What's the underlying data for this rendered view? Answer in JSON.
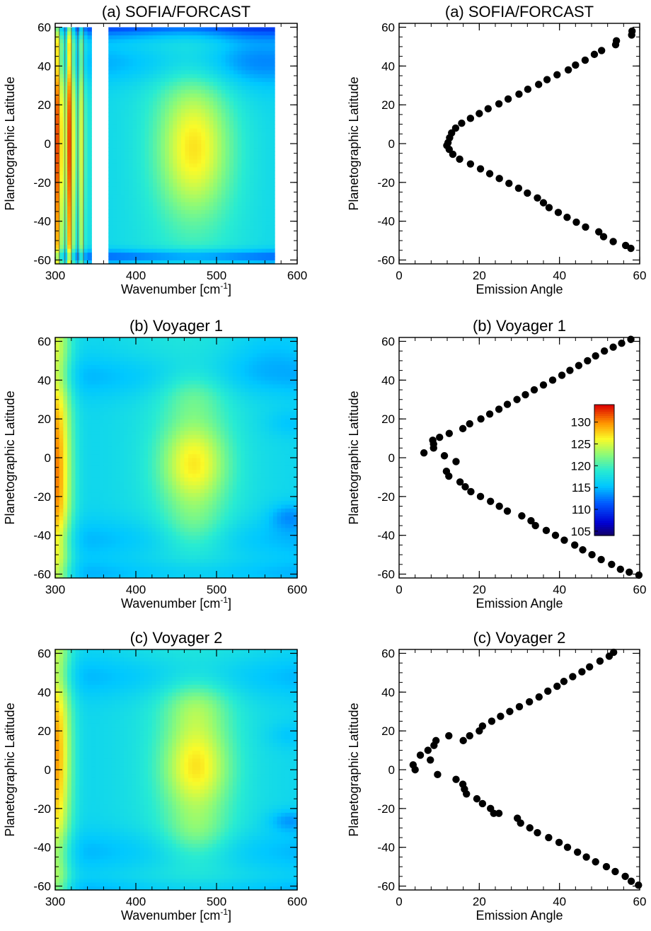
{
  "colorbar": {
    "range": [
      104,
      134
    ],
    "ticks": [
      105,
      110,
      115,
      120,
      125,
      130
    ]
  },
  "chart_data": [
    {
      "id": "spec_sofia",
      "type": "heatmap",
      "title": "(a) SOFIA/FORCAST",
      "xlabel": "Wavenumber [cm",
      "xlabel_sup": "-1",
      "xlabel_tail": "]",
      "ylabel": "Planetographic Latitude",
      "xlim": [
        300,
        600
      ],
      "ylim": [
        -62,
        62
      ],
      "xticks": [
        300,
        400,
        500,
        600
      ],
      "yticks": [
        -60,
        -40,
        -20,
        0,
        20,
        40,
        60
      ],
      "data_coverage_x": [
        [
          300,
          345
        ],
        [
          366,
          572
        ]
      ],
      "data_coverage_y": [
        -62,
        60
      ],
      "description_model": "sofia"
    },
    {
      "id": "ang_sofia",
      "type": "scatter",
      "title": "(a) SOFIA/FORCAST",
      "xlabel": "Emission Angle",
      "ylabel": "Planetographic Latitude",
      "xlim": [
        0,
        60
      ],
      "ylim": [
        -62,
        62
      ],
      "xticks": [
        0,
        20,
        40,
        60
      ],
      "yticks": [
        -60,
        -40,
        -20,
        0,
        20,
        40,
        60
      ],
      "points": [
        [
          58.1,
          58
        ],
        [
          58.0,
          56
        ],
        [
          54.2,
          53
        ],
        [
          54.0,
          51
        ],
        [
          50.5,
          48
        ],
        [
          48.7,
          46
        ],
        [
          46.4,
          43
        ],
        [
          44.0,
          40.5
        ],
        [
          42.2,
          38
        ],
        [
          39.4,
          35.5
        ],
        [
          36.9,
          33
        ],
        [
          34.8,
          30.5
        ],
        [
          32.1,
          28
        ],
        [
          29.9,
          25.5
        ],
        [
          27.2,
          23
        ],
        [
          24.9,
          20.5
        ],
        [
          22.2,
          18
        ],
        [
          20.0,
          15.5
        ],
        [
          17.8,
          13
        ],
        [
          15.6,
          10.5
        ],
        [
          14.1,
          8
        ],
        [
          13.1,
          5.5
        ],
        [
          12.6,
          3
        ],
        [
          12.2,
          0.5
        ],
        [
          11.9,
          -1
        ],
        [
          12.5,
          -3
        ],
        [
          13.4,
          -5.5
        ],
        [
          15.1,
          -8
        ],
        [
          17.8,
          -10.5
        ],
        [
          20.3,
          -13
        ],
        [
          22.6,
          -15.5
        ],
        [
          25.0,
          -18
        ],
        [
          27.4,
          -20.5
        ],
        [
          29.8,
          -23
        ],
        [
          32.0,
          -25.5
        ],
        [
          34.5,
          -28
        ],
        [
          36.0,
          -30.5
        ],
        [
          37.4,
          -33
        ],
        [
          39.7,
          -35.5
        ],
        [
          41.9,
          -38
        ],
        [
          44.2,
          -40.5
        ],
        [
          46.5,
          -43
        ],
        [
          49.8,
          -45.5
        ],
        [
          51.0,
          -48
        ],
        [
          53.4,
          -50.5
        ],
        [
          56.5,
          -52.5
        ],
        [
          57.8,
          -54
        ]
      ]
    },
    {
      "id": "spec_v1",
      "type": "heatmap",
      "title": "(b) Voyager 1",
      "xlabel": "Wavenumber [cm",
      "xlabel_sup": "-1",
      "xlabel_tail": "]",
      "ylabel": "Planetographic Latitude",
      "xlim": [
        300,
        600
      ],
      "ylim": [
        -62,
        62
      ],
      "xticks": [
        300,
        400,
        500,
        600
      ],
      "yticks": [
        -60,
        -40,
        -20,
        0,
        20,
        40,
        60
      ],
      "description_model": "voyager1"
    },
    {
      "id": "ang_v1",
      "type": "scatter",
      "title": "(b) Voyager 1",
      "xlabel": "Emission Angle",
      "ylabel": "Planetographic Latitude",
      "xlim": [
        0,
        60
      ],
      "ylim": [
        -62,
        62
      ],
      "xticks": [
        0,
        20,
        40,
        60
      ],
      "yticks": [
        -60,
        -40,
        -20,
        0,
        20,
        40,
        60
      ],
      "points": [
        [
          57.8,
          61
        ],
        [
          55.5,
          59
        ],
        [
          53.4,
          57
        ],
        [
          51.2,
          55
        ],
        [
          49.0,
          52.5
        ],
        [
          47.0,
          50
        ],
        [
          44.8,
          47.5
        ],
        [
          42.6,
          45
        ],
        [
          40.6,
          42.5
        ],
        [
          38.3,
          40
        ],
        [
          36.0,
          37.5
        ],
        [
          33.7,
          35
        ],
        [
          31.5,
          32.5
        ],
        [
          29.4,
          30
        ],
        [
          27.0,
          27.5
        ],
        [
          24.9,
          25
        ],
        [
          22.6,
          22.5
        ],
        [
          20.4,
          20
        ],
        [
          17.6,
          17.5
        ],
        [
          15.9,
          15
        ],
        [
          12.5,
          12.5
        ],
        [
          10.1,
          10.5
        ],
        [
          8.4,
          9
        ],
        [
          8.6,
          7
        ],
        [
          8.6,
          5
        ],
        [
          6.2,
          2.5
        ],
        [
          11.3,
          1
        ],
        [
          14.2,
          -2
        ],
        [
          11.8,
          -7
        ],
        [
          12.4,
          -9.5
        ],
        [
          15.2,
          -12.5
        ],
        [
          16.5,
          -15
        ],
        [
          17.9,
          -17.5
        ],
        [
          20.3,
          -20
        ],
        [
          22.8,
          -22.5
        ],
        [
          25.0,
          -25
        ],
        [
          27.0,
          -27.5
        ],
        [
          30.6,
          -30
        ],
        [
          32.9,
          -32.5
        ],
        [
          34.0,
          -35
        ],
        [
          36.7,
          -37.5
        ],
        [
          39.0,
          -40
        ],
        [
          41.2,
          -42.5
        ],
        [
          43.8,
          -45
        ],
        [
          45.8,
          -47.5
        ],
        [
          48.1,
          -50
        ],
        [
          50.4,
          -52.5
        ],
        [
          53.0,
          -55
        ],
        [
          55.2,
          -57.5
        ],
        [
          57.4,
          -59
        ],
        [
          59.8,
          -60.5
        ]
      ]
    },
    {
      "id": "spec_v2",
      "type": "heatmap",
      "title": "(c) Voyager 2",
      "xlabel": "Wavenumber [cm",
      "xlabel_sup": "-1",
      "xlabel_tail": "]",
      "ylabel": "Planetographic Latitude",
      "xlim": [
        300,
        600
      ],
      "ylim": [
        -62,
        62
      ],
      "xticks": [
        300,
        400,
        500,
        600
      ],
      "yticks": [
        -60,
        -40,
        -20,
        0,
        20,
        40,
        60
      ],
      "description_model": "voyager2"
    },
    {
      "id": "ang_v2",
      "type": "scatter",
      "title": "(c) Voyager 2",
      "xlabel": "Emission Angle",
      "ylabel": "Planetographic Latitude",
      "xlim": [
        0,
        60
      ],
      "ylim": [
        -62,
        62
      ],
      "xticks": [
        0,
        20,
        40,
        60
      ],
      "yticks": [
        -60,
        -40,
        -20,
        0,
        20,
        40,
        60
      ],
      "points": [
        [
          53.5,
          60.5
        ],
        [
          52.4,
          58.5
        ],
        [
          50.1,
          56
        ],
        [
          47.5,
          53
        ],
        [
          45.6,
          50.5
        ],
        [
          43.3,
          48
        ],
        [
          41.1,
          45.5
        ],
        [
          39.4,
          43
        ],
        [
          37.1,
          40.5
        ],
        [
          34.9,
          37.5
        ],
        [
          32.5,
          35
        ],
        [
          30.0,
          32.5
        ],
        [
          27.6,
          30
        ],
        [
          25.3,
          27.5
        ],
        [
          23.1,
          25
        ],
        [
          20.8,
          22.5
        ],
        [
          20.0,
          20
        ],
        [
          17.6,
          17.5
        ],
        [
          16.0,
          15
        ],
        [
          12.4,
          17.5
        ],
        [
          9.2,
          15
        ],
        [
          8.7,
          12.5
        ],
        [
          7.2,
          10
        ],
        [
          5.3,
          7.5
        ],
        [
          3.5,
          2.5
        ],
        [
          4.0,
          0
        ],
        [
          7.8,
          5
        ],
        [
          9.6,
          -2.5
        ],
        [
          14.2,
          -5
        ],
        [
          15.9,
          -7.5
        ],
        [
          16.3,
          -10
        ],
        [
          16.8,
          -12.5
        ],
        [
          19.4,
          -15
        ],
        [
          20.8,
          -17.5
        ],
        [
          22.8,
          -20
        ],
        [
          23.6,
          -22.5
        ],
        [
          24.9,
          -22.5
        ],
        [
          29.5,
          -25
        ],
        [
          30.3,
          -27.5
        ],
        [
          32.6,
          -30
        ],
        [
          34.5,
          -32.5
        ],
        [
          37.3,
          -35
        ],
        [
          39.9,
          -37.5
        ],
        [
          42.0,
          -40
        ],
        [
          44.5,
          -42.5
        ],
        [
          46.7,
          -45
        ],
        [
          49.0,
          -47.5
        ],
        [
          51.7,
          -50
        ],
        [
          53.9,
          -52.5
        ],
        [
          56.4,
          -55
        ],
        [
          57.9,
          -57.5
        ],
        [
          59.7,
          -59.5
        ]
      ]
    }
  ]
}
